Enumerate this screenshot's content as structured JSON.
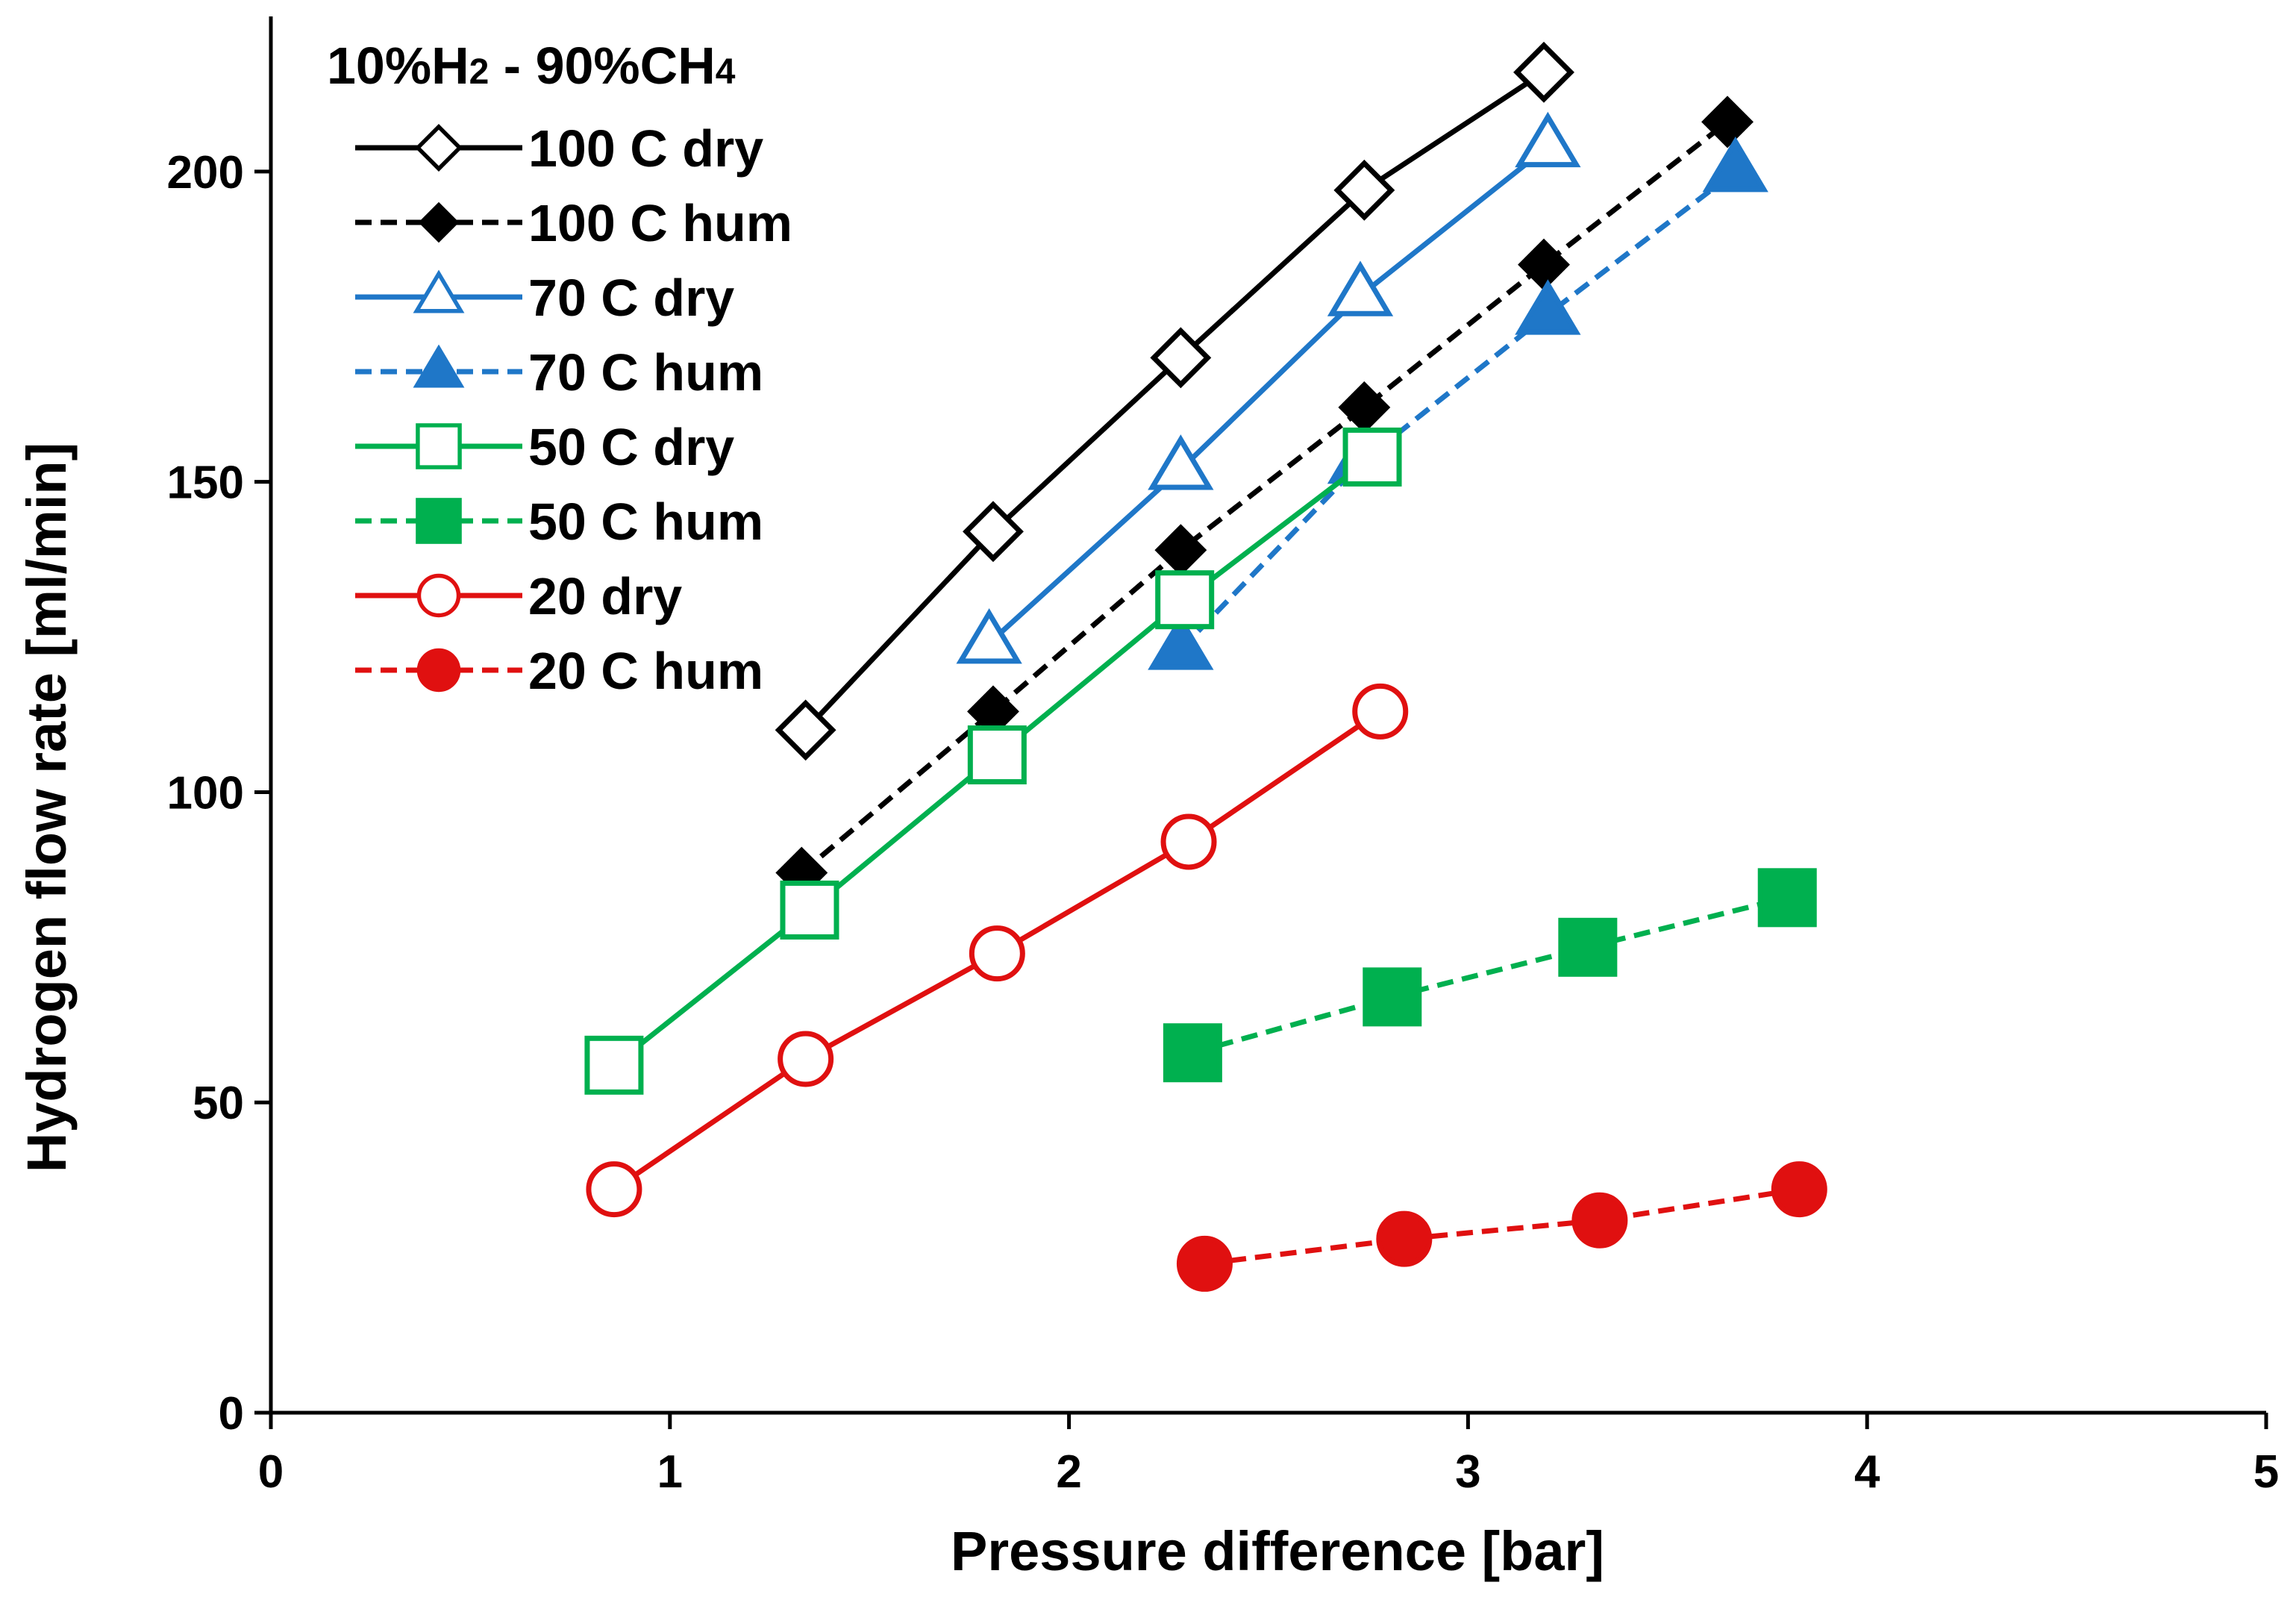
{
  "chart_data": {
    "type": "line",
    "title": "",
    "legend_title": {
      "prefix": "10%H",
      "sub1": "2",
      "middle": " - 90%CH",
      "sub2": "4"
    },
    "xlabel": "Pressure difference [bar]",
    "ylabel": "Hydrogen flow rate [ml/min]",
    "xlim": [
      0,
      5
    ],
    "ylim": [
      0,
      225
    ],
    "xticks": [
      0,
      1,
      2,
      3,
      4,
      5
    ],
    "yticks": [
      0,
      50,
      100,
      150,
      200
    ],
    "grid": false,
    "legend_position": "top-left",
    "series": [
      {
        "name": "100 C dry",
        "color": "#000000",
        "dash": "solid",
        "marker": "diamond",
        "filled": false,
        "x": [
          1.34,
          1.81,
          2.28,
          2.74,
          3.19
        ],
        "y": [
          110,
          142,
          170,
          197,
          216
        ]
      },
      {
        "name": "100 C hum",
        "color": "#000000",
        "dash": "dashed",
        "marker": "diamond",
        "filled": true,
        "x": [
          1.33,
          1.81,
          2.28,
          2.74,
          3.19,
          3.65
        ],
        "y": [
          87,
          113,
          139,
          162,
          185,
          208
        ]
      },
      {
        "name": "70 C dry",
        "color": "#1f77c8",
        "dash": "solid",
        "marker": "triangle",
        "filled": false,
        "x": [
          1.8,
          2.28,
          2.73,
          3.2
        ],
        "y": [
          124,
          152,
          180,
          204
        ]
      },
      {
        "name": "70 C hum",
        "color": "#1f77c8",
        "dash": "dashed",
        "marker": "triangle",
        "filled": true,
        "x": [
          2.28,
          2.73,
          3.2,
          3.67
        ],
        "y": [
          123,
          153,
          177,
          200
        ]
      },
      {
        "name": "50 C dry",
        "color": "#00b04f",
        "dash": "solid",
        "marker": "square",
        "filled": false,
        "x": [
          0.86,
          1.35,
          1.82,
          2.29,
          2.76
        ],
        "y": [
          56,
          81,
          106,
          131,
          154
        ]
      },
      {
        "name": "50 C hum",
        "color": "#00b04f",
        "dash": "dashed",
        "marker": "square",
        "filled": true,
        "x": [
          2.31,
          2.81,
          3.3,
          3.8
        ],
        "y": [
          58,
          67,
          75,
          83
        ]
      },
      {
        "name": "20 dry",
        "color": "#e01010",
        "dash": "solid",
        "marker": "circle",
        "filled": false,
        "x": [
          0.86,
          1.34,
          1.82,
          2.3,
          2.78
        ],
        "y": [
          36,
          57,
          74,
          92,
          113
        ]
      },
      {
        "name": "20 C hum",
        "color": "#e01010",
        "dash": "dashed",
        "marker": "circle",
        "filled": true,
        "x": [
          2.34,
          2.84,
          3.33,
          3.83
        ],
        "y": [
          24,
          28,
          31,
          36
        ]
      }
    ]
  }
}
